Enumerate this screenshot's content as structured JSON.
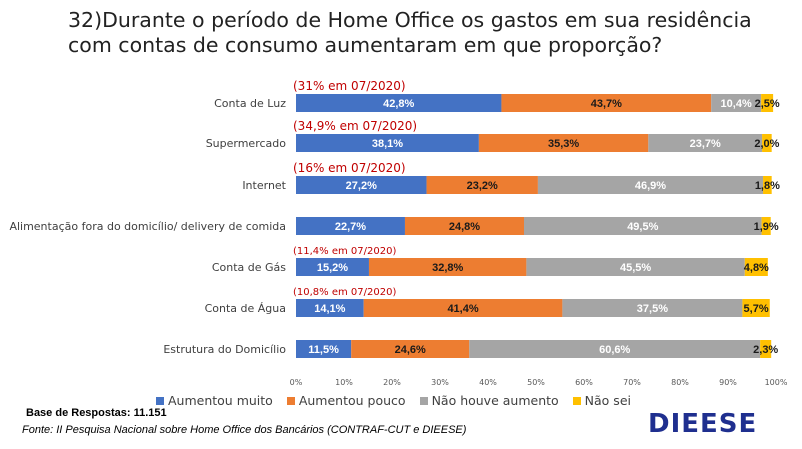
{
  "title": "32)Durante o período de Home Office os gastos em sua residência com contas de consumo aumentaram em que proporção?",
  "base_text": "Base de Respostas: 11.151",
  "source_text": "Fonte: II Pesquisa Nacional sobre Home Office dos Bancários (CONTRAF-CUT e DIEESE)",
  "logo_text": "DIEESE",
  "colors": {
    "Aumentou muito": "#4472c4",
    "Aumentou pouco": "#ed7d31",
    "Não houve aumento": "#a5a5a5",
    "Não sei": "#ffc000",
    "note": "#c00000"
  },
  "chart_data": {
    "type": "bar",
    "orientation": "horizontal",
    "stacked": true,
    "categories": [
      "Conta de Luz",
      "Supermercado",
      "Internet",
      "Alimentação fora do domicílio/ delivery de comida",
      "Conta de Gás",
      "Conta de Água",
      "Estrutura do Domicílio"
    ],
    "series": [
      {
        "name": "Aumentou muito",
        "values": [
          42.8,
          38.1,
          27.2,
          22.7,
          15.2,
          14.1,
          11.5
        ],
        "labels": [
          "42,8%",
          "38,1%",
          "27,2%",
          "22,7%",
          "15,2%",
          "14,1%",
          "11,5%"
        ]
      },
      {
        "name": "Aumentou pouco",
        "values": [
          43.7,
          35.3,
          23.2,
          24.8,
          32.8,
          41.4,
          24.6
        ],
        "labels": [
          "43,7%",
          "35,3%",
          "23,2%",
          "24,8%",
          "32,8%",
          "41,4%",
          "24,6%"
        ]
      },
      {
        "name": "Não houve aumento",
        "values": [
          10.4,
          23.7,
          46.9,
          49.5,
          45.5,
          37.5,
          60.6
        ],
        "labels": [
          "10,4%",
          "23,7%",
          "46,9%",
          "49,5%",
          "45,5%",
          "37,5%",
          "60,6%"
        ]
      },
      {
        "name": "Não sei",
        "values": [
          2.5,
          2.0,
          1.8,
          1.9,
          4.8,
          5.7,
          2.3
        ],
        "labels": [
          "2,5%",
          "2,0%",
          "1,8%",
          "1,9%",
          "4,8%",
          "5,7%",
          "2,3%"
        ]
      }
    ],
    "annotations": [
      "(31% em 07/2020)",
      "(34,9% em 07/2020)",
      "(16% em 07/2020)",
      "",
      "(11,4% em 07/2020)",
      "(10,8% em 07/2020)",
      ""
    ],
    "xlim": [
      0,
      100
    ],
    "xticks": [
      "0%",
      "10%",
      "20%",
      "30%",
      "40%",
      "50%",
      "60%",
      "70%",
      "80%",
      "90%",
      "100%"
    ],
    "legend_position": "bottom"
  }
}
